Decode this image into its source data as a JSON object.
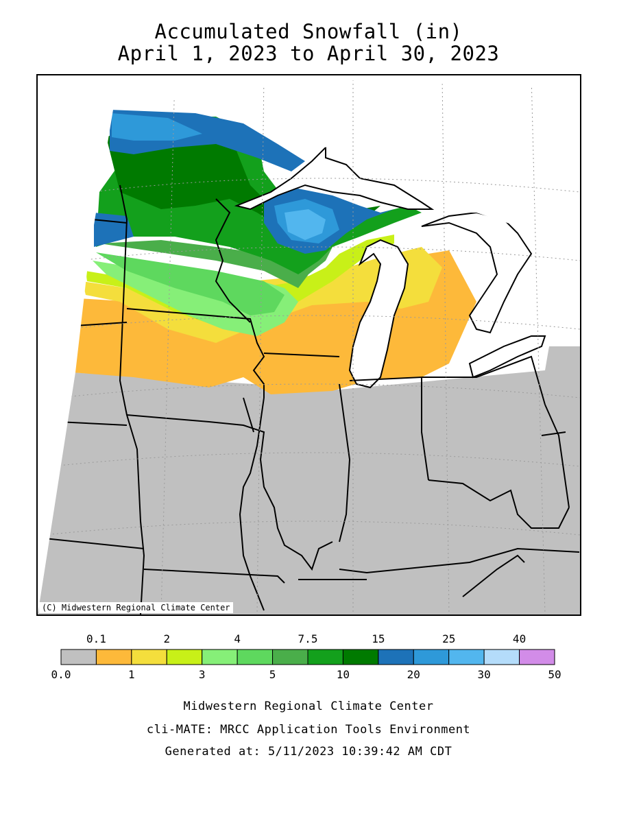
{
  "title": {
    "line1": "Accumulated Snowfall (in)",
    "line2": "April 1, 2023 to April 30, 2023"
  },
  "map": {
    "copyright": "(C) Midwestern Regional Climate Center"
  },
  "legend": {
    "upper_labels": [
      "0.1",
      "2",
      "4",
      "7.5",
      "15",
      "25",
      "40"
    ],
    "lower_labels": [
      "0.0",
      "1",
      "3",
      "5",
      "10",
      "20",
      "30",
      "50"
    ],
    "bins": [
      {
        "color": "#c0c0c0"
      },
      {
        "color": "#fdb93a"
      },
      {
        "color": "#f4de3c"
      },
      {
        "color": "#c8f018"
      },
      {
        "color": "#86ef78"
      },
      {
        "color": "#5ed85e"
      },
      {
        "color": "#4aae4a"
      },
      {
        "color": "#13a01c"
      },
      {
        "color": "#007a00"
      },
      {
        "color": "#1d72b8"
      },
      {
        "color": "#2e99d9"
      },
      {
        "color": "#52b6ee"
      },
      {
        "color": "#b4dcfa"
      },
      {
        "color": "#d28ce8"
      }
    ]
  },
  "footer": {
    "line1": "Midwestern Regional Climate Center",
    "line2": "cli-MATE: MRCC Application Tools Environment",
    "line3": "Generated at: 5/11/2023 10:39:42 AM CDT"
  }
}
